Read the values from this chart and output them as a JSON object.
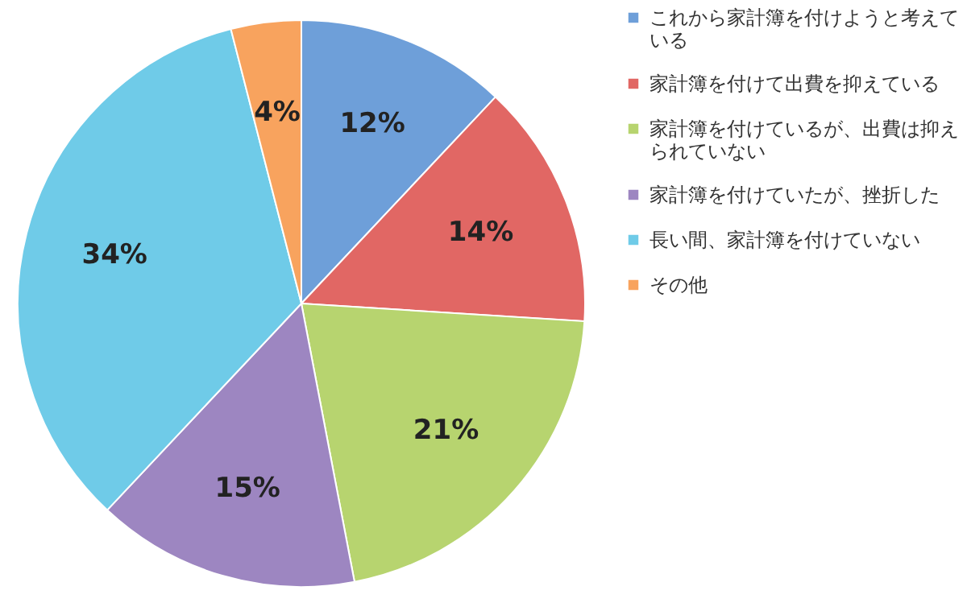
{
  "chart_data": {
    "type": "pie",
    "categories": [
      "これから家計簿を付けようと考えている",
      "家計簿を付けて出費を抑えている",
      "家計簿を付けているが、出費は抑えられていない",
      "家計簿を付けていたが、挫折した",
      "長い間、家計簿を付けていない",
      "その他"
    ],
    "values": [
      12,
      14,
      21,
      15,
      34,
      4
    ],
    "value_labels": [
      "12%",
      "14%",
      "21%",
      "15%",
      "34%",
      "4%"
    ],
    "colors": [
      "#6e9fd9",
      "#e16764",
      "#b7d46f",
      "#9d86c1",
      "#6fcbe8",
      "#f8a35e"
    ],
    "legend": "right"
  }
}
